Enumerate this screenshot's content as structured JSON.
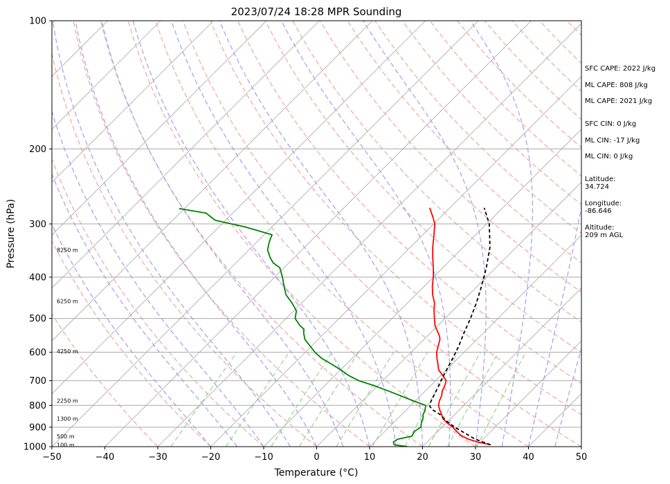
{
  "chart_data": {
    "type": "skew-t",
    "title": "2023/07/24 18:28 MPR Sounding",
    "xlabel": "Temperature (°C)",
    "ylabel": "Pressure (hPa)",
    "xlim": [
      -50,
      50
    ],
    "ylim": [
      1000,
      100
    ],
    "y_scale": "log",
    "x_ticks": [
      "−50",
      "−40",
      "−30",
      "−20",
      "−10",
      "0",
      "10",
      "20",
      "30",
      "40",
      "50"
    ],
    "y_ticks": [
      "100",
      "200",
      "300",
      "400",
      "500",
      "600",
      "700",
      "800",
      "900",
      "1000"
    ],
    "height_labels": [
      "8250 m",
      "6250 m",
      "4250 m",
      "2250 m",
      "1300 m",
      "500 m",
      "100 m"
    ],
    "height_label_pressures": [
      345,
      455,
      597,
      780,
      860,
      945,
      990
    ],
    "series": [
      {
        "role": "temperature",
        "color": "#ff0000",
        "points": [
          [
            990,
            32.5
          ],
          [
            975,
            29.5
          ],
          [
            960,
            27.2
          ],
          [
            940,
            25.0
          ],
          [
            920,
            23.5
          ],
          [
            900,
            22.0
          ],
          [
            880,
            20.2
          ],
          [
            860,
            18.6
          ],
          [
            840,
            17.5
          ],
          [
            820,
            16.3
          ],
          [
            800,
            15.2
          ],
          [
            780,
            14.5
          ],
          [
            760,
            14.0
          ],
          [
            740,
            13.2
          ],
          [
            720,
            12.7
          ],
          [
            700,
            12.0
          ],
          [
            680,
            10.3
          ],
          [
            660,
            8.5
          ],
          [
            640,
            7.3
          ],
          [
            620,
            6.0
          ],
          [
            600,
            4.8
          ],
          [
            580,
            3.9
          ],
          [
            560,
            3.0
          ],
          [
            550,
            2.3
          ],
          [
            520,
            -0.5
          ],
          [
            500,
            -2.0
          ],
          [
            480,
            -3.5
          ],
          [
            460,
            -4.9
          ],
          [
            440,
            -6.8
          ],
          [
            420,
            -8.5
          ],
          [
            400,
            -10.0
          ],
          [
            380,
            -11.8
          ],
          [
            360,
            -13.8
          ],
          [
            340,
            -15.8
          ],
          [
            320,
            -17.7
          ],
          [
            300,
            -19.8
          ],
          [
            290,
            -21.3
          ],
          [
            275,
            -23.8
          ]
        ]
      },
      {
        "role": "dewpoint",
        "color": "#008000",
        "points": [
          [
            1000,
            17.2
          ],
          [
            990,
            14.3
          ],
          [
            975,
            13.6
          ],
          [
            960,
            13.9
          ],
          [
            945,
            16.0
          ],
          [
            920,
            15.6
          ],
          [
            900,
            16.0
          ],
          [
            880,
            15.3
          ],
          [
            860,
            14.8
          ],
          [
            840,
            14.0
          ],
          [
            825,
            13.7
          ],
          [
            800,
            12.8
          ],
          [
            780,
            9.5
          ],
          [
            760,
            6.3
          ],
          [
            740,
            3.0
          ],
          [
            720,
            -0.5
          ],
          [
            700,
            -4.5
          ],
          [
            680,
            -7.5
          ],
          [
            660,
            -10.0
          ],
          [
            640,
            -12.8
          ],
          [
            620,
            -15.8
          ],
          [
            600,
            -18.2
          ],
          [
            580,
            -20.3
          ],
          [
            560,
            -22.5
          ],
          [
            540,
            -24.0
          ],
          [
            530,
            -24.6
          ],
          [
            520,
            -26.0
          ],
          [
            500,
            -28.3
          ],
          [
            480,
            -29.5
          ],
          [
            460,
            -31.8
          ],
          [
            440,
            -34.5
          ],
          [
            420,
            -36.5
          ],
          [
            400,
            -38.5
          ],
          [
            380,
            -40.8
          ],
          [
            370,
            -43.0
          ],
          [
            360,
            -44.5
          ],
          [
            345,
            -46.5
          ],
          [
            330,
            -47.7
          ],
          [
            318,
            -48.5
          ],
          [
            305,
            -55.0
          ],
          [
            294,
            -62.0
          ],
          [
            283,
            -65.0
          ],
          [
            276,
            -71.0
          ]
        ]
      },
      {
        "role": "parcel",
        "color": "#000000",
        "points": [
          [
            990,
            32.5
          ],
          [
            960,
            28.5
          ],
          [
            930,
            25.5
          ],
          [
            900,
            22.4
          ],
          [
            870,
            19.6
          ],
          [
            840,
            17.2
          ],
          [
            820,
            15.0
          ],
          [
            805,
            13.8
          ],
          [
            790,
            13.2
          ],
          [
            760,
            12.5
          ],
          [
            730,
            11.8
          ],
          [
            700,
            11.0
          ],
          [
            660,
            10.0
          ],
          [
            620,
            9.0
          ],
          [
            580,
            7.8
          ],
          [
            540,
            6.3
          ],
          [
            500,
            4.8
          ],
          [
            460,
            3.0
          ],
          [
            420,
            0.8
          ],
          [
            380,
            -1.8
          ],
          [
            340,
            -5.0
          ],
          [
            300,
            -9.5
          ],
          [
            275,
            -13.5
          ]
        ]
      }
    ]
  },
  "info_panel": {
    "sfc_cape": "SFC CAPE: 2022 J/kg",
    "ml_cape_1": "ML CAPE: 808 J/kg",
    "ml_cape_2": "ML CAPE: 2021 J/kg",
    "sfc_cin": "SFC CIN: 0 J/kg",
    "ml_cin_1": "ML CIN: -17 J/kg",
    "ml_cin_2": "ML CIN: 0 J/kg",
    "latitude_label": "Latitude:",
    "latitude_value": "34.724",
    "longitude_label": "Longitude:",
    "longitude_value": "-86.646",
    "altitude_label": "Altitude:",
    "altitude_value": "209 m AGL"
  },
  "colors": {
    "temperature": "#ff0000",
    "dewpoint": "#008000",
    "parcel": "#000000",
    "dry_adiabat": "#f4a9a9",
    "moist_adiabat": "#a9a3f0",
    "mixing_ratio": "#9fd49f",
    "isotherm": "#a8a8a8",
    "isobar": "#a8a8a8"
  }
}
